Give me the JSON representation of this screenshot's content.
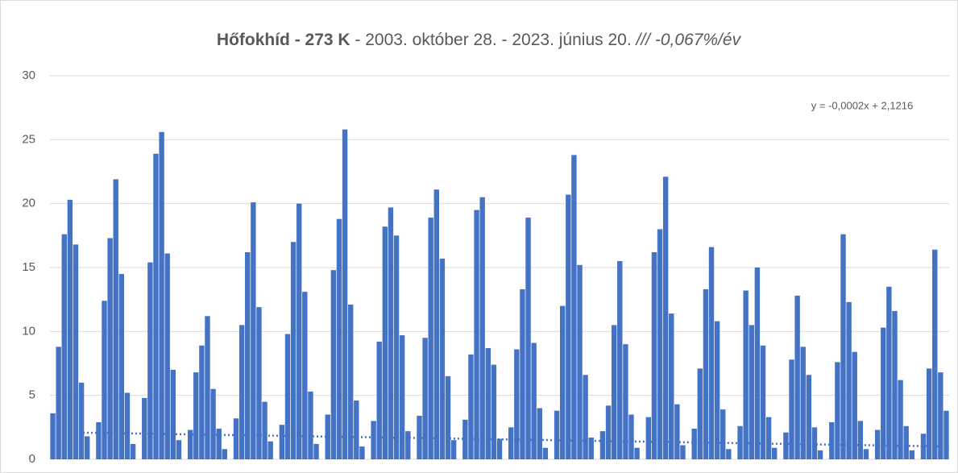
{
  "chart_data": {
    "type": "bar",
    "title_parts": [
      "Hőfokhíd - 273 K",
      " - 2003. október 28. - 2023. június 20. ",
      "/// -0,067%/év"
    ],
    "annotation": "y = -0,0002x + 2,1216",
    "color": "#4472c4",
    "values": [
      3.6,
      8.8,
      17.6,
      20.3,
      16.8,
      6.0,
      1.8,
      0,
      2.9,
      12.4,
      17.3,
      21.9,
      14.5,
      5.2,
      1.2,
      0,
      4.8,
      15.4,
      23.9,
      25.6,
      16.1,
      7.0,
      1.5,
      0,
      2.3,
      6.8,
      8.9,
      11.2,
      5.5,
      2.4,
      0.8,
      0,
      3.2,
      10.5,
      16.2,
      20.1,
      11.9,
      4.5,
      1.4,
      0,
      2.7,
      9.8,
      17.0,
      20.0,
      13.1,
      5.3,
      1.2,
      0,
      3.5,
      14.8,
      18.8,
      25.8,
      12.1,
      4.6,
      1.0,
      0,
      3.0,
      9.2,
      18.2,
      19.7,
      17.5,
      9.7,
      2.2,
      0,
      3.4,
      9.5,
      18.9,
      21.1,
      15.7,
      6.5,
      1.5,
      0,
      3.1,
      8.2,
      19.5,
      20.5,
      8.7,
      7.4,
      1.6,
      0,
      2.5,
      8.6,
      13.3,
      18.9,
      9.1,
      4.0,
      0.9,
      0,
      3.8,
      12.0,
      20.7,
      23.8,
      15.2,
      6.6,
      1.7,
      0,
      2.2,
      4.2,
      10.5,
      15.5,
      9.0,
      3.5,
      0.9,
      0,
      3.3,
      16.2,
      18.0,
      22.1,
      11.4,
      4.3,
      1.1,
      0,
      2.4,
      7.1,
      13.3,
      16.6,
      10.8,
      3.9,
      0.8,
      0,
      2.6,
      13.2,
      10.5,
      15.0,
      8.9,
      3.3,
      0.9,
      0,
      2.1,
      7.8,
      12.8,
      8.8,
      6.6,
      2.5,
      0.7,
      0,
      2.9,
      7.6,
      17.6,
      12.3,
      8.4,
      3.0,
      0.8,
      0,
      2.3,
      10.3,
      13.5,
      11.6,
      6.2,
      2.6,
      0.7,
      0,
      2.0,
      7.1,
      16.4,
      6.8,
      3.8
    ],
    "trendline": {
      "start": 2.1,
      "end": 1.0,
      "color": "#4472c4"
    },
    "ylim": [
      0,
      30
    ],
    "yticks": [
      0,
      5,
      10,
      15,
      20,
      25,
      30
    ],
    "grid": true
  }
}
